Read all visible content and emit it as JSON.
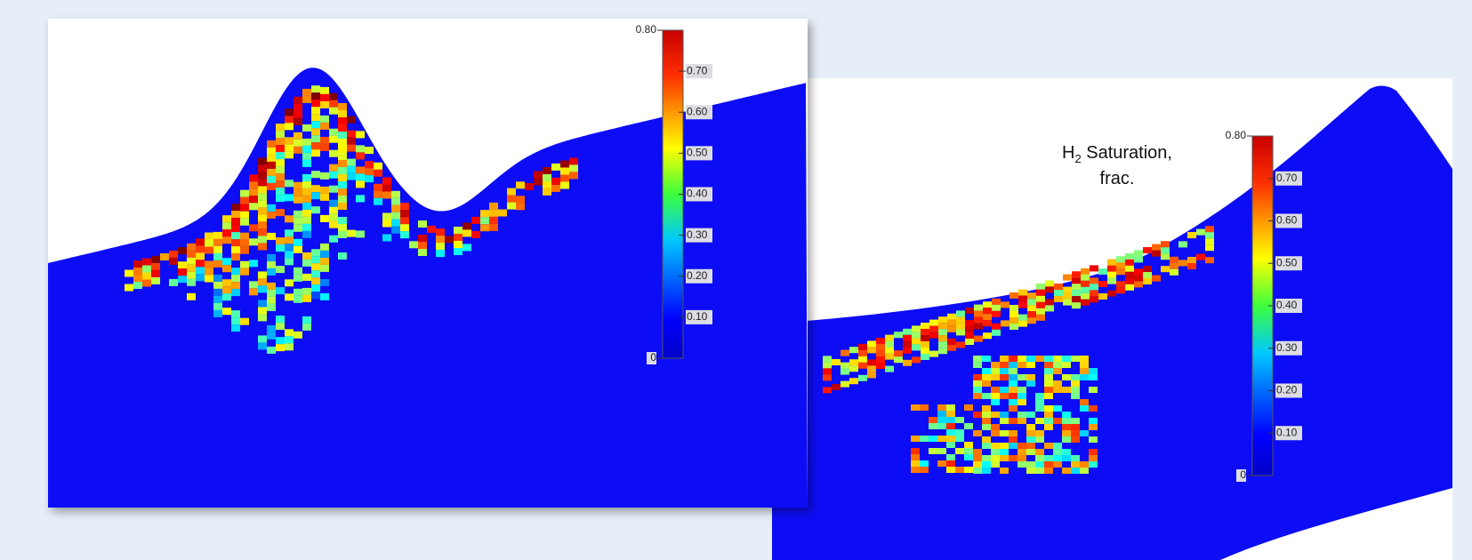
{
  "panels": [
    {
      "colorbar": {
        "ticks": [
          {
            "value": 0.8,
            "label": "0.80"
          },
          {
            "value": 0.7,
            "label": "0.70"
          },
          {
            "value": 0.6,
            "label": "0.60"
          },
          {
            "value": 0.5,
            "label": "0.50"
          },
          {
            "value": 0.4,
            "label": "0.40"
          },
          {
            "value": 0.3,
            "label": "0.30"
          },
          {
            "value": 0.2,
            "label": "0.20"
          },
          {
            "value": 0.1,
            "label": "0.10"
          },
          0
        ]
      }
    },
    {
      "colorbar": {
        "title": {
          "symbol": "H",
          "subscript": "2",
          "rest": " Saturation,",
          "line2": "frac."
        },
        "ticks": [
          {
            "value": 0.8,
            "label": "0.80"
          },
          {
            "value": 0.7,
            "label": "0.70"
          },
          {
            "value": 0.6,
            "label": "0.60"
          },
          {
            "value": 0.5,
            "label": "0.50"
          },
          {
            "value": 0.4,
            "label": "0.40"
          },
          {
            "value": 0.3,
            "label": "0.30"
          },
          {
            "value": 0.2,
            "label": "0.20"
          },
          {
            "value": 0.1,
            "label": "0.10"
          },
          0
        ]
      }
    }
  ]
}
